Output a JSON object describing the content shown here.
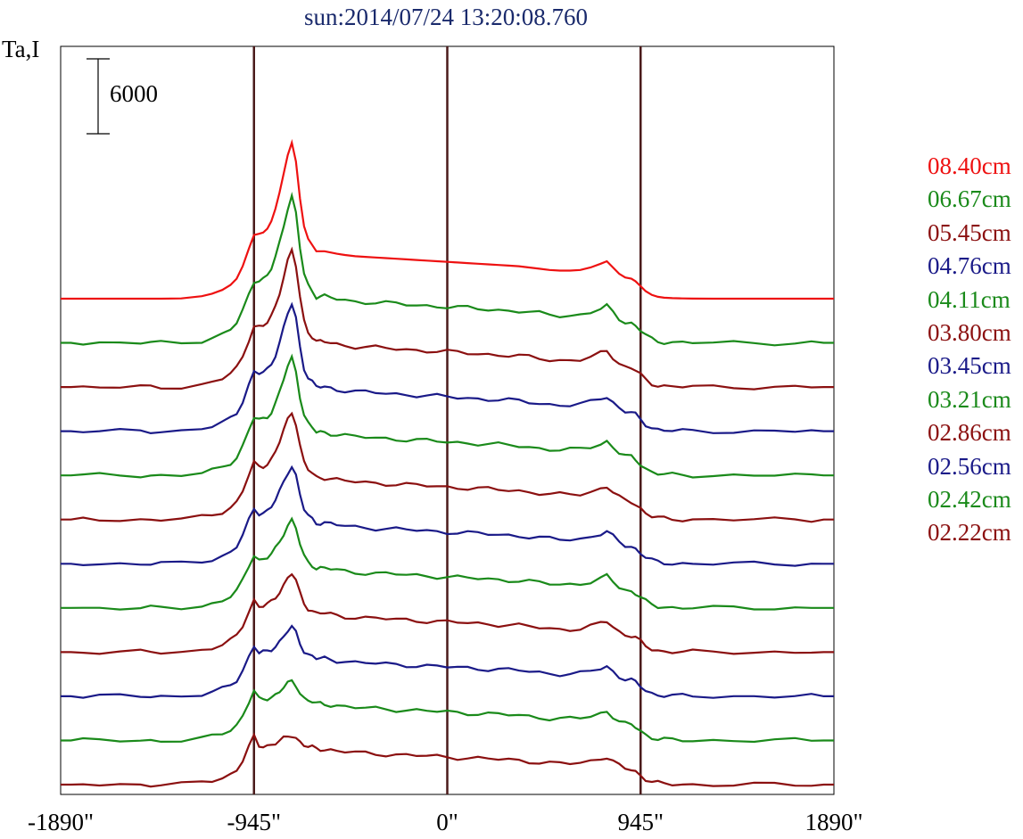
{
  "chart_data": {
    "type": "line",
    "title": "sun:2014/07/24 13:20:08.760",
    "ylabel": "Ta,I",
    "scale_bar_label": "6000",
    "scale_bar_value": 6000,
    "xlim": [
      -1890,
      1890
    ],
    "x_ticks": [
      -1890,
      -945,
      0,
      945,
      1890
    ],
    "x_tick_labels": [
      "-1890\"",
      "-945\"",
      "0\"",
      "945\"",
      "1890\""
    ],
    "vertical_lines": [
      -945,
      0,
      945
    ],
    "x": [
      -1890,
      -1840,
      -1780,
      -1700,
      -1600,
      -1500,
      -1450,
      -1400,
      -1300,
      -1200,
      -1150,
      -1100,
      -1060,
      -1030,
      -1000,
      -970,
      -945,
      -920,
      -900,
      -880,
      -860,
      -840,
      -820,
      -800,
      -780,
      -760,
      -740,
      -720,
      -700,
      -680,
      -660,
      -640,
      -620,
      -600,
      -570,
      -540,
      -500,
      -450,
      -400,
      -350,
      -300,
      -250,
      -200,
      -150,
      -100,
      -50,
      0,
      50,
      100,
      150,
      200,
      250,
      300,
      350,
      400,
      450,
      500,
      550,
      600,
      650,
      700,
      750,
      780,
      810,
      840,
      870,
      900,
      920,
      945,
      970,
      1000,
      1030,
      1060,
      1100,
      1150,
      1200,
      1300,
      1400,
      1500,
      1600,
      1700,
      1780,
      1840,
      1890
    ],
    "series": [
      {
        "name": "08.40cm",
        "color": "#ee1111",
        "offset": 240,
        "peak": 14300,
        "secondary": 3500,
        "base": [
          0,
          0,
          0,
          0,
          0,
          0,
          0,
          0,
          20,
          200,
          400,
          700,
          1100,
          1600,
          2600,
          4000,
          5100,
          5200,
          5300,
          5600,
          6200,
          7200,
          8500,
          10000,
          11500,
          12500,
          11000,
          8000,
          5800,
          4800,
          4300,
          3800,
          3800,
          3800,
          3700,
          3600,
          3500,
          3400,
          3350,
          3300,
          3250,
          3200,
          3150,
          3100,
          3050,
          3000,
          2950,
          2900,
          2850,
          2800,
          2750,
          2700,
          2650,
          2600,
          2500,
          2400,
          2300,
          2250,
          2250,
          2300,
          2500,
          2800,
          3000,
          2500,
          2000,
          1700,
          1600,
          1400,
          1000,
          600,
          300,
          150,
          80,
          40,
          20,
          10,
          0,
          0,
          0,
          0,
          0,
          0,
          0,
          0
        ]
      },
      {
        "name": "06.67cm",
        "color": "#1a8a1a",
        "offset": 0,
        "peak": 0,
        "secondary": 0,
        "base": []
      },
      {
        "name": "05.45cm",
        "color": "#8b1010",
        "offset": 0,
        "peak": 0,
        "secondary": 0,
        "base": []
      },
      {
        "name": "04.76cm",
        "color": "#1a1a88",
        "offset": 0,
        "peak": 0,
        "secondary": 0,
        "base": []
      },
      {
        "name": "04.11cm",
        "color": "#1a8a1a",
        "offset": 0,
        "peak": 0,
        "secondary": 0,
        "base": []
      },
      {
        "name": "03.80cm",
        "color": "#8b1010",
        "offset": 0,
        "peak": 0,
        "secondary": 0,
        "base": []
      },
      {
        "name": "03.45cm",
        "color": "#1a1a88",
        "offset": 0,
        "peak": 0,
        "secondary": 0,
        "base": []
      },
      {
        "name": "03.21cm",
        "color": "#1a8a1a",
        "offset": 0,
        "peak": 0,
        "secondary": 0,
        "base": []
      },
      {
        "name": "02.86cm",
        "color": "#8b1010",
        "offset": 0,
        "peak": 0,
        "secondary": 0,
        "base": []
      },
      {
        "name": "02.56cm",
        "color": "#1a1a88",
        "offset": 0,
        "peak": 0,
        "secondary": 0,
        "base": []
      },
      {
        "name": "02.42cm",
        "color": "#1a8a1a",
        "offset": 0,
        "peak": 0,
        "secondary": 0,
        "base": []
      },
      {
        "name": "02.22cm",
        "color": "#8b1010",
        "offset": 0,
        "peak": 0,
        "secondary": 0,
        "base": []
      }
    ],
    "grid": false,
    "legend_position": "right"
  },
  "legend": [
    {
      "label": "08.40cm",
      "color": "#ee1111"
    },
    {
      "label": "06.67cm",
      "color": "#1a8a1a"
    },
    {
      "label": "05.45cm",
      "color": "#8b1010"
    },
    {
      "label": "04.76cm",
      "color": "#1a1a88"
    },
    {
      "label": "04.11cm",
      "color": "#1a8a1a"
    },
    {
      "label": "03.80cm",
      "color": "#8b1010"
    },
    {
      "label": "03.45cm",
      "color": "#1a1a88"
    },
    {
      "label": "03.21cm",
      "color": "#1a8a1a"
    },
    {
      "label": "02.86cm",
      "color": "#8b1010"
    },
    {
      "label": "02.56cm",
      "color": "#1a1a88"
    },
    {
      "label": "02.42cm",
      "color": "#1a8a1a"
    },
    {
      "label": "02.22cm",
      "color": "#8b1010"
    }
  ],
  "colors": {
    "frame": "#000000",
    "vline": "#4a1a1a",
    "title": "#1a2a6c"
  }
}
